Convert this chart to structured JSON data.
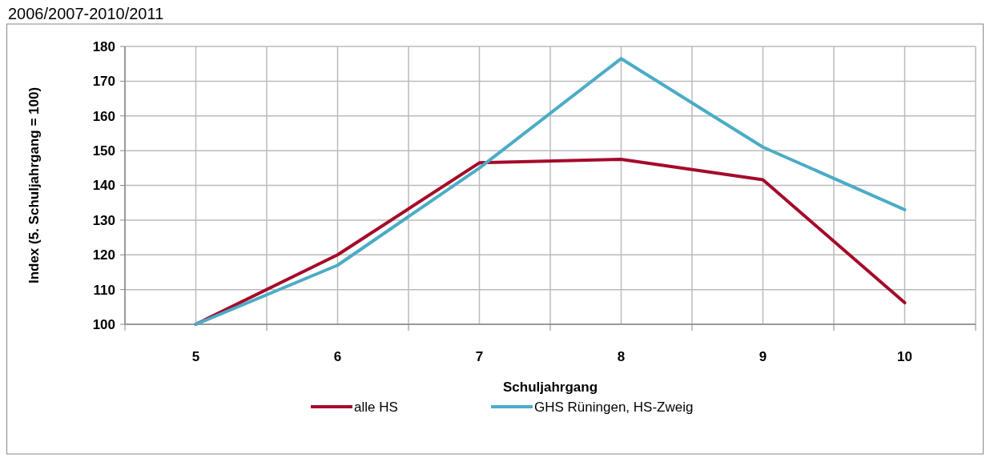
{
  "chart_data": {
    "type": "line",
    "title": "2006/2007-2010/2011",
    "xlabel": "Schuljahrgang",
    "ylabel": "Index (5. Schuljahrgang = 100)",
    "categories": [
      "5",
      "6",
      "7",
      "8",
      "9",
      "10"
    ],
    "series": [
      {
        "name": "alle HS",
        "color": "#a50a2a",
        "values": [
          100,
          120,
          146.5,
          147.5,
          141.6,
          106.2
        ]
      },
      {
        "name": "GHS Rüningen, HS-Zweig",
        "color": "#4bacc6",
        "values": [
          100,
          117,
          145,
          176.5,
          151,
          133
        ]
      }
    ],
    "ylim": [
      100,
      180
    ],
    "yticks": [
      100,
      110,
      120,
      130,
      140,
      150,
      160,
      170,
      180
    ],
    "grid": true,
    "legend": "bottom",
    "marker": "none",
    "line_style": "solid"
  }
}
